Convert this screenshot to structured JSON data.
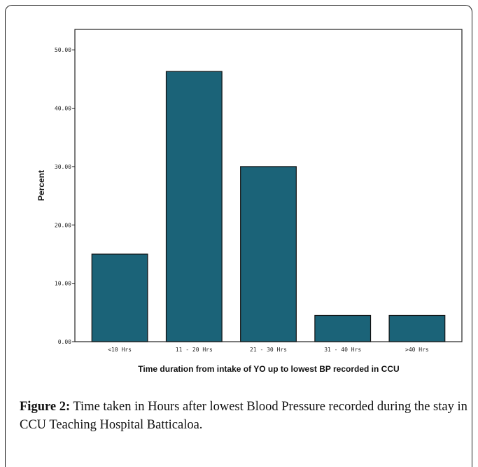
{
  "chart_data": {
    "type": "bar",
    "categories": [
      "<10 Hrs",
      "11 - 20 Hrs",
      "21 - 30 Hrs",
      "31 - 40 Hrs",
      ">40 Hrs"
    ],
    "values": [
      15.0,
      46.3,
      30.0,
      4.5,
      4.5
    ],
    "xlabel": "Time duration from intake of YO up to lowest BP recorded in CCU",
    "ylabel": "Percent",
    "ylim": [
      0,
      53.5
    ],
    "yticks": [
      0,
      10,
      20,
      30,
      40,
      50
    ],
    "ytick_labels": [
      "0.00",
      "10.00",
      "20.00",
      "30.00",
      "40.00",
      "50.00"
    ],
    "bar_color": "#1b6378",
    "grid": false
  },
  "caption": {
    "label": "Figure 2:",
    "text": " Time taken in Hours after lowest Blood Pressure recorded during the stay in CCU Teaching Hospital Batticaloa."
  }
}
